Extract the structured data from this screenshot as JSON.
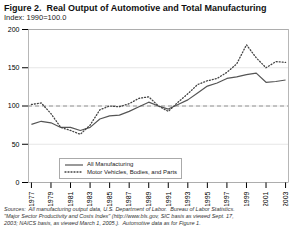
{
  "chart_data": {
    "type": "line",
    "title": "Figure 2.  Real Output of Automotive and Total Manufacturing",
    "subtitle": "Index: 1990=100.0",
    "source": "Sources:  All manufacturing output data, U.S. Department of Labor.  Bureau of Labor Statistics.\n\"Major Sector Productivity and Costs Index\" (http://www.bls.gov, SIC basis as viewed Sept. 17,\n2003; NAICS basis, as viewed March 1, 2005.).  Automotive data as for Figure 1.",
    "x": [
      1977,
      1978,
      1979,
      1980,
      1981,
      1982,
      1983,
      1984,
      1985,
      1986,
      1987,
      1988,
      1989,
      1990,
      1991,
      1992,
      1993,
      1994,
      1995,
      1996,
      1997,
      1998,
      1999,
      2000,
      2001,
      2002,
      2003
    ],
    "series": [
      {
        "name": "All Manufacturing",
        "color": "#555555",
        "line_style": "solid",
        "values": [
          76,
          80,
          78,
          72,
          72,
          68,
          72,
          83,
          87,
          88,
          93,
          99,
          105,
          100,
          96,
          102,
          108,
          117,
          126,
          130,
          136,
          138,
          141,
          143,
          131,
          132,
          134
        ]
      },
      {
        "name": "Motor Vehicles, Bodies, and Parts",
        "color": "#444444",
        "line_style": "dotted",
        "values": [
          102,
          104,
          90,
          72,
          68,
          63,
          75,
          95,
          100,
          99,
          103,
          110,
          112,
          100,
          93,
          105,
          116,
          128,
          133,
          136,
          144,
          155,
          180,
          163,
          150,
          158,
          157
        ]
      }
    ],
    "reference_line": {
      "value": 100,
      "color": "#888888",
      "line_style": "dashed"
    },
    "xlim": [
      1976.7,
      2003.3
    ],
    "xticks": [
      1977,
      1979,
      1981,
      1983,
      1985,
      1987,
      1989,
      1991,
      1993,
      1995,
      1997,
      1999,
      2001,
      2003
    ],
    "ylim": [
      0,
      200
    ],
    "yticks": [
      0,
      50,
      100,
      150,
      200
    ],
    "grid": true,
    "legend": "lower left"
  }
}
